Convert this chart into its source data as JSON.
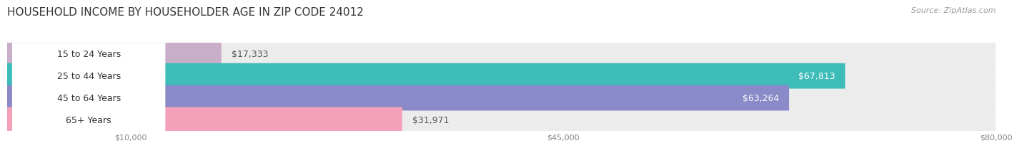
{
  "title": "HOUSEHOLD INCOME BY HOUSEHOLDER AGE IN ZIP CODE 24012",
  "source": "Source: ZipAtlas.com",
  "categories": [
    "15 to 24 Years",
    "25 to 44 Years",
    "45 to 64 Years",
    "65+ Years"
  ],
  "values": [
    17333,
    67813,
    63264,
    31971
  ],
  "bar_colors": [
    "#c9aec9",
    "#3dbcb8",
    "#8a8ac8",
    "#f4a0b8"
  ],
  "bar_bg_color": "#ececec",
  "xmax": 80000,
  "xticks": [
    10000,
    45000,
    80000
  ],
  "xtick_labels": [
    "$10,000",
    "$45,000",
    "$80,000"
  ],
  "title_fontsize": 11,
  "source_fontsize": 8,
  "label_fontsize": 9,
  "bar_label_fontsize": 9,
  "background_color": "#ffffff",
  "bar_height": 0.58,
  "value_labels": [
    "$17,333",
    "$67,813",
    "$63,264",
    "$31,971"
  ],
  "label_text_color": "#333333",
  "value_inside_color": "#ffffff",
  "value_outside_color": "#555555"
}
